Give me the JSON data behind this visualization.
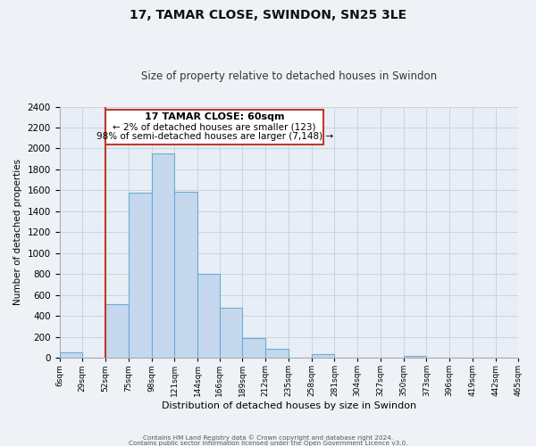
{
  "title": "17, TAMAR CLOSE, SWINDON, SN25 3LE",
  "subtitle": "Size of property relative to detached houses in Swindon",
  "xlabel": "Distribution of detached houses by size in Swindon",
  "ylabel": "Number of detached properties",
  "bar_color": "#c5d8ed",
  "bar_edge_color": "#6aaed6",
  "bin_edges": [
    6,
    29,
    52,
    75,
    98,
    121,
    144,
    166,
    189,
    212,
    235,
    258,
    281,
    304,
    327,
    350,
    373,
    396,
    419,
    442,
    465
  ],
  "bin_labels": [
    "6sqm",
    "29sqm",
    "52sqm",
    "75sqm",
    "98sqm",
    "121sqm",
    "144sqm",
    "166sqm",
    "189sqm",
    "212sqm",
    "235sqm",
    "258sqm",
    "281sqm",
    "304sqm",
    "327sqm",
    "350sqm",
    "373sqm",
    "396sqm",
    "419sqm",
    "442sqm",
    "465sqm"
  ],
  "bar_heights": [
    50,
    0,
    510,
    1575,
    1950,
    1590,
    800,
    480,
    185,
    90,
    0,
    35,
    0,
    0,
    0,
    15,
    0,
    0,
    0,
    0
  ],
  "ylim": [
    0,
    2400
  ],
  "yticks": [
    0,
    200,
    400,
    600,
    800,
    1000,
    1200,
    1400,
    1600,
    1800,
    2000,
    2200,
    2400
  ],
  "vline_x": 52,
  "vline_color": "#c0392b",
  "annotation_title": "17 TAMAR CLOSE: 60sqm",
  "annotation_line1": "← 2% of detached houses are smaller (123)",
  "annotation_line2": "98% of semi-detached houses are larger (7,148) →",
  "footer_line1": "Contains HM Land Registry data © Crown copyright and database right 2024.",
  "footer_line2": "Contains public sector information licensed under the Open Government Licence v3.0.",
  "background_color": "#eef2f7",
  "plot_bg_color": "#e8eef5",
  "grid_color": "#c8d4e0"
}
